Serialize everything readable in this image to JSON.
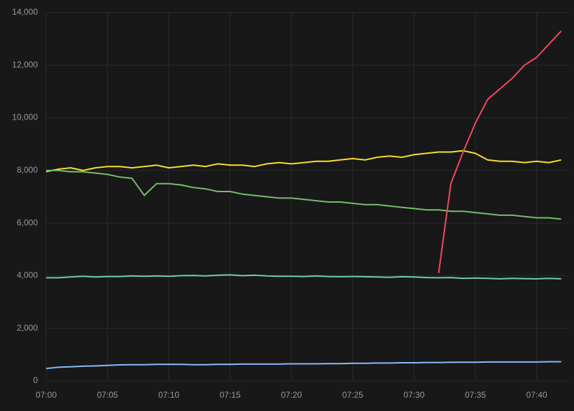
{
  "chart_data": {
    "type": "line",
    "x": [
      0,
      1,
      2,
      3,
      4,
      5,
      6,
      7,
      8,
      9,
      10,
      11,
      12,
      13,
      14,
      15,
      16,
      17,
      18,
      19,
      20,
      21,
      22,
      23,
      24,
      25,
      26,
      27,
      28,
      29,
      30,
      31,
      32,
      33,
      34,
      35,
      36,
      37,
      38,
      39,
      40,
      41,
      42
    ],
    "xlim": [
      0,
      42.7
    ],
    "xticks": [
      {
        "value": 0,
        "label": "07:00"
      },
      {
        "value": 5,
        "label": "07:05"
      },
      {
        "value": 10,
        "label": "07:10"
      },
      {
        "value": 15,
        "label": "07:15"
      },
      {
        "value": 20,
        "label": "07:20"
      },
      {
        "value": 25,
        "label": "07:25"
      },
      {
        "value": 30,
        "label": "07:30"
      },
      {
        "value": 35,
        "label": "07:35"
      },
      {
        "value": 40,
        "label": "07:40"
      }
    ],
    "ylim": [
      0,
      14000
    ],
    "yticks": [
      0,
      {
        "value": 2000,
        "label": "2,000"
      },
      {
        "value": 4000,
        "label": "4,000"
      },
      {
        "value": 6000,
        "label": "6,000"
      },
      {
        "value": 8000,
        "label": "8,000"
      },
      {
        "value": 10000,
        "label": "10,000"
      },
      {
        "value": 12000,
        "label": "12,000"
      },
      {
        "value": 14000,
        "label": "14,000"
      }
    ],
    "grid": true,
    "series": [
      {
        "color": "#fade2a",
        "values": [
          7950,
          8050,
          8100,
          8000,
          8100,
          8150,
          8150,
          8100,
          8150,
          8200,
          8100,
          8150,
          8200,
          8150,
          8250,
          8200,
          8200,
          8150,
          8250,
          8300,
          8250,
          8300,
          8350,
          8350,
          8400,
          8450,
          8400,
          8500,
          8550,
          8500,
          8600,
          8650,
          8700,
          8700,
          8750,
          8650,
          8400,
          8350,
          8350,
          8300,
          8350,
          8300,
          8400
        ]
      },
      {
        "color": "#73bf69",
        "values": [
          8000,
          8000,
          7950,
          7950,
          7900,
          7850,
          7750,
          7700,
          7050,
          7500,
          7500,
          7450,
          7350,
          7300,
          7200,
          7200,
          7100,
          7050,
          7000,
          6950,
          6950,
          6900,
          6850,
          6800,
          6800,
          6750,
          6700,
          6700,
          6650,
          6600,
          6550,
          6500,
          6500,
          6450,
          6450,
          6400,
          6350,
          6300,
          6300,
          6250,
          6200,
          6200,
          6150
        ]
      },
      {
        "color": "#6ed0a0",
        "values": [
          3920,
          3920,
          3950,
          3980,
          3950,
          3970,
          3970,
          3990,
          3980,
          3990,
          3980,
          4000,
          4010,
          3990,
          4020,
          4030,
          4000,
          4020,
          3990,
          3980,
          3980,
          3970,
          3990,
          3970,
          3960,
          3970,
          3960,
          3950,
          3940,
          3960,
          3950,
          3930,
          3920,
          3930,
          3900,
          3910,
          3900,
          3880,
          3900,
          3890,
          3880,
          3900,
          3880
        ]
      },
      {
        "color": "#8ab8ff",
        "values": [
          470,
          520,
          540,
          560,
          570,
          590,
          610,
          620,
          620,
          630,
          630,
          630,
          620,
          620,
          630,
          630,
          640,
          640,
          640,
          640,
          650,
          650,
          650,
          660,
          660,
          670,
          670,
          680,
          680,
          690,
          690,
          700,
          700,
          710,
          710,
          710,
          720,
          720,
          720,
          720,
          720,
          730,
          730
        ]
      },
      {
        "color": "#f2495c",
        "values": [
          null,
          null,
          null,
          null,
          null,
          null,
          null,
          null,
          null,
          null,
          null,
          null,
          null,
          null,
          null,
          null,
          null,
          null,
          null,
          null,
          null,
          null,
          null,
          null,
          null,
          null,
          null,
          null,
          null,
          null,
          null,
          null,
          4100,
          7500,
          8700,
          9800,
          10700,
          11100,
          11500,
          12000,
          12300,
          12800,
          13300
        ]
      }
    ]
  }
}
